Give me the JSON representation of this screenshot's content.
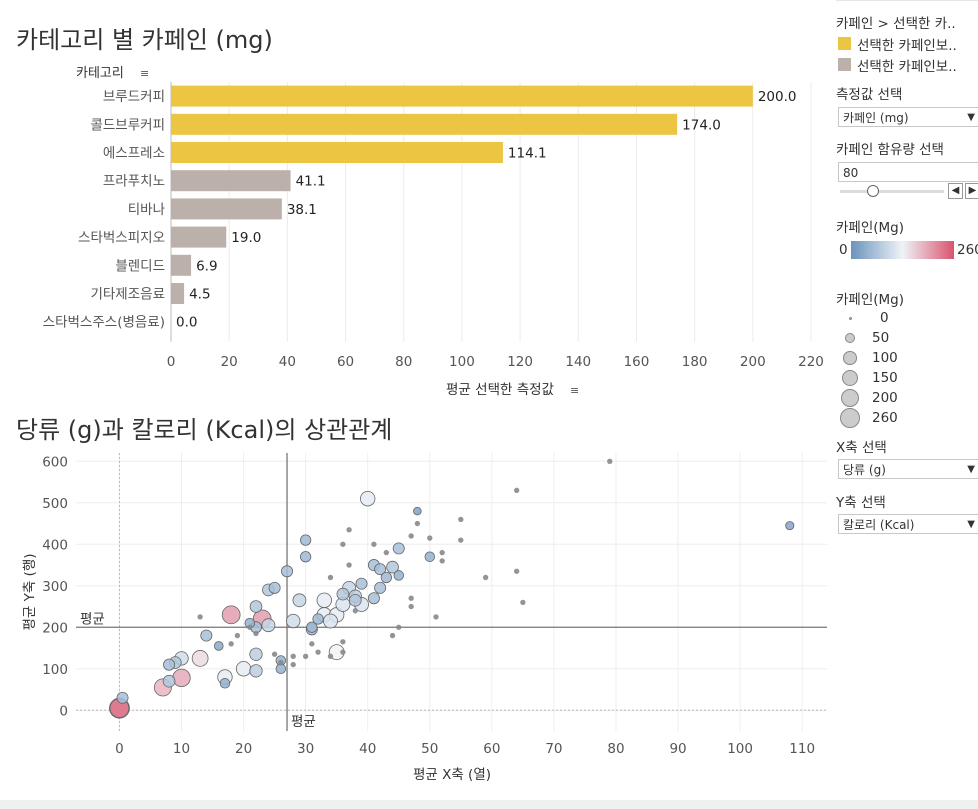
{
  "titles": {
    "bar": "카테고리 별 카페인 (mg)",
    "scatter": "당류 (g)과 칼로리 (Kcal)의 상관관계"
  },
  "colors": {
    "highlight": "#ecc543",
    "other": "#bcb0ab",
    "grad_low": "#6a93bd",
    "grad_mid": "#eff3f7",
    "grad_high": "#d9536e"
  },
  "chart_data": [
    {
      "type": "bar",
      "orientation": "horizontal",
      "row_header": "카테고리",
      "categories": [
        "브루드커피",
        "콜드브루커피",
        "에스프레소",
        "프라푸치노",
        "티바나",
        "스타벅스피지오",
        "블렌디드",
        "기타제조음료",
        "스타벅스주스(병음료)"
      ],
      "values": [
        200.0,
        174.0,
        114.1,
        41.1,
        38.1,
        19.0,
        6.9,
        4.5,
        0.0
      ],
      "value_labels": [
        "200.0",
        "174.0",
        "114.1",
        "41.1",
        "38.1",
        "19.0",
        "6.9",
        "4.5",
        "0.0"
      ],
      "highlighted": [
        true,
        true,
        true,
        false,
        false,
        false,
        false,
        false,
        false
      ],
      "xlabel": "평균 선택한 측정값",
      "xlim": [
        0,
        220
      ],
      "xticks": [
        0,
        20,
        40,
        60,
        80,
        100,
        120,
        140,
        160,
        180,
        200,
        220
      ],
      "grid": true
    },
    {
      "type": "scatter",
      "xlabel": "평균 X축 (열)",
      "ylabel": "평균 Y축 (행)",
      "xlim": [
        -7,
        114
      ],
      "ylim": [
        -50,
        620
      ],
      "xticks": [
        0,
        10,
        20,
        30,
        40,
        50,
        60,
        70,
        80,
        90,
        100,
        110
      ],
      "yticks": [
        0,
        100,
        200,
        300,
        400,
        500,
        600
      ],
      "ref_lines": {
        "x_avg": 27,
        "y_avg": 200,
        "x_label": "평균",
        "y_label": "평균"
      },
      "size_by": "카페인 (mg)",
      "color_by": "카페인 (mg)",
      "points": [
        [
          0,
          5,
          225
        ],
        [
          0,
          5,
          260
        ],
        [
          0.5,
          30,
          60
        ],
        [
          7,
          55,
          180
        ],
        [
          10,
          78,
          190
        ],
        [
          8,
          70,
          70
        ],
        [
          8,
          110,
          60
        ],
        [
          9,
          115,
          70
        ],
        [
          10,
          125,
          100
        ],
        [
          13,
          125,
          150
        ],
        [
          14,
          180,
          60
        ],
        [
          16,
          155,
          30
        ],
        [
          17,
          65,
          40
        ],
        [
          17,
          80,
          120
        ],
        [
          18,
          230,
          200
        ],
        [
          20,
          100,
          120
        ],
        [
          21,
          210,
          40
        ],
        [
          22,
          200,
          60
        ],
        [
          22,
          135,
          80
        ],
        [
          22,
          95,
          80
        ],
        [
          23,
          220,
          200
        ],
        [
          24,
          205,
          90
        ],
        [
          24,
          290,
          70
        ],
        [
          25,
          295,
          60
        ],
        [
          22,
          250,
          70
        ],
        [
          26,
          120,
          40
        ],
        [
          26,
          100,
          40
        ],
        [
          27,
          335,
          60
        ],
        [
          28,
          215,
          100
        ],
        [
          29,
          265,
          90
        ],
        [
          30,
          370,
          50
        ],
        [
          30,
          410,
          50
        ],
        [
          31,
          200,
          50
        ],
        [
          31,
          195,
          60
        ],
        [
          32,
          220,
          50
        ],
        [
          33,
          230,
          120
        ],
        [
          33,
          265,
          120
        ],
        [
          34,
          215,
          110
        ],
        [
          35,
          230,
          120
        ],
        [
          35,
          140,
          130
        ],
        [
          36,
          255,
          110
        ],
        [
          36,
          280,
          70
        ],
        [
          37,
          295,
          90
        ],
        [
          38,
          275,
          80
        ],
        [
          38,
          265,
          70
        ],
        [
          39,
          305,
          60
        ],
        [
          39,
          255,
          110
        ],
        [
          40,
          510,
          120
        ],
        [
          41,
          350,
          60
        ],
        [
          41,
          270,
          60
        ],
        [
          42,
          295,
          60
        ],
        [
          42,
          340,
          60
        ],
        [
          43,
          320,
          50
        ],
        [
          44,
          345,
          70
        ],
        [
          45,
          390,
          60
        ],
        [
          45,
          325,
          40
        ],
        [
          48,
          480,
          20
        ],
        [
          50,
          370,
          40
        ],
        [
          37,
          435,
          5
        ],
        [
          38,
          240,
          5
        ],
        [
          41,
          400,
          5
        ],
        [
          43,
          380,
          5
        ],
        [
          47,
          420,
          5
        ],
        [
          48,
          450,
          5
        ],
        [
          50,
          415,
          5
        ],
        [
          44,
          180,
          5
        ],
        [
          45,
          200,
          5
        ],
        [
          47,
          250,
          5
        ],
        [
          47,
          270,
          5
        ],
        [
          51,
          225,
          5
        ],
        [
          52,
          380,
          5
        ],
        [
          52,
          360,
          5
        ],
        [
          55,
          460,
          5
        ],
        [
          55,
          410,
          5
        ],
        [
          59,
          320,
          5
        ],
        [
          64,
          530,
          5
        ],
        [
          64,
          335,
          5
        ],
        [
          65,
          260,
          5
        ],
        [
          79,
          600,
          5
        ],
        [
          108,
          445,
          25
        ],
        [
          13,
          225,
          5
        ],
        [
          22,
          185,
          5
        ],
        [
          25,
          135,
          5
        ],
        [
          26,
          115,
          5
        ],
        [
          28,
          110,
          5
        ],
        [
          28,
          130,
          5
        ],
        [
          30,
          130,
          5
        ],
        [
          31,
          160,
          5
        ],
        [
          32,
          140,
          5
        ],
        [
          34,
          130,
          5
        ],
        [
          36,
          140,
          5
        ],
        [
          36,
          165,
          5
        ],
        [
          34,
          320,
          5
        ],
        [
          37,
          350,
          5
        ],
        [
          36,
          400,
          5
        ],
        [
          19,
          180,
          5
        ],
        [
          18,
          160,
          5
        ],
        [
          21,
          200,
          5
        ]
      ]
    }
  ],
  "sidebar": {
    "legend_title": "카페인 > 선택한 카..",
    "legend_items": [
      "선택한 카페인보..",
      "선택한 카페인보.."
    ],
    "measure_label": "측정값 선택",
    "measure_value": "카페인 (mg)",
    "threshold_label": "카페인 함유량 선택",
    "threshold_value": "80",
    "slider_fraction": 0.31,
    "color_legend_title": "카페인(Mg)",
    "color_min": "0",
    "color_max": "260",
    "size_legend_title": "카페인(Mg)",
    "size_values": [
      "0",
      "50",
      "100",
      "150",
      "200",
      "260"
    ],
    "xaxis_label": "X축 선택",
    "xaxis_value": "당류 (g)",
    "yaxis_label": "Y축 선택",
    "yaxis_value": "칼로리 (Kcal)"
  }
}
